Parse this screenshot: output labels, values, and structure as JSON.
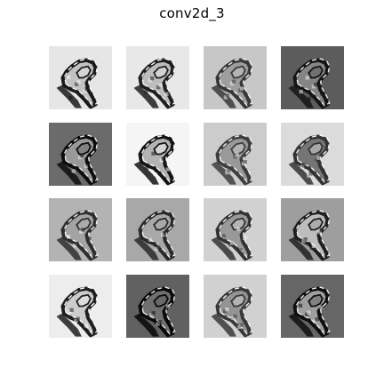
{
  "figure": {
    "title": "conv2d_3"
  },
  "chart_data": {
    "type": "heatmap",
    "title": "conv2d_3",
    "colormap": "gray",
    "grid": false,
    "layout": {
      "rows": 4,
      "cols": 4
    },
    "panels": [
      {
        "index": 0,
        "background": 0.9,
        "fill": 0.76,
        "edge": 0.1,
        "highlight": 0.98
      },
      {
        "index": 1,
        "background": 0.91,
        "fill": 0.74,
        "edge": 0.12,
        "highlight": 0.97
      },
      {
        "index": 2,
        "background": 0.78,
        "fill": 0.62,
        "edge": 0.22,
        "highlight": 0.96
      },
      {
        "index": 3,
        "background": 0.36,
        "fill": 0.52,
        "edge": 0.08,
        "highlight": 0.93
      },
      {
        "index": 4,
        "background": 0.42,
        "fill": 0.6,
        "edge": 0.05,
        "highlight": 0.92
      },
      {
        "index": 5,
        "background": 0.96,
        "fill": 0.7,
        "edge": 0.08,
        "highlight": 0.99
      },
      {
        "index": 6,
        "background": 0.8,
        "fill": 0.6,
        "edge": 0.24,
        "highlight": 0.95
      },
      {
        "index": 7,
        "background": 0.86,
        "fill": 0.46,
        "edge": 0.2,
        "highlight": 0.96
      },
      {
        "index": 8,
        "background": 0.7,
        "fill": 0.64,
        "edge": 0.18,
        "highlight": 0.96
      },
      {
        "index": 9,
        "background": 0.66,
        "fill": 0.66,
        "edge": 0.16,
        "highlight": 0.94
      },
      {
        "index": 10,
        "background": 0.82,
        "fill": 0.6,
        "edge": 0.2,
        "highlight": 0.97
      },
      {
        "index": 11,
        "background": 0.62,
        "fill": 0.74,
        "edge": 0.12,
        "highlight": 0.95
      },
      {
        "index": 12,
        "background": 0.93,
        "fill": 0.8,
        "edge": 0.12,
        "highlight": 0.98
      },
      {
        "index": 13,
        "background": 0.38,
        "fill": 0.44,
        "edge": 0.03,
        "highlight": 0.9
      },
      {
        "index": 14,
        "background": 0.82,
        "fill": 0.58,
        "edge": 0.22,
        "highlight": 0.97
      },
      {
        "index": 15,
        "background": 0.4,
        "fill": 0.62,
        "edge": 0.06,
        "highlight": 0.94
      }
    ]
  }
}
